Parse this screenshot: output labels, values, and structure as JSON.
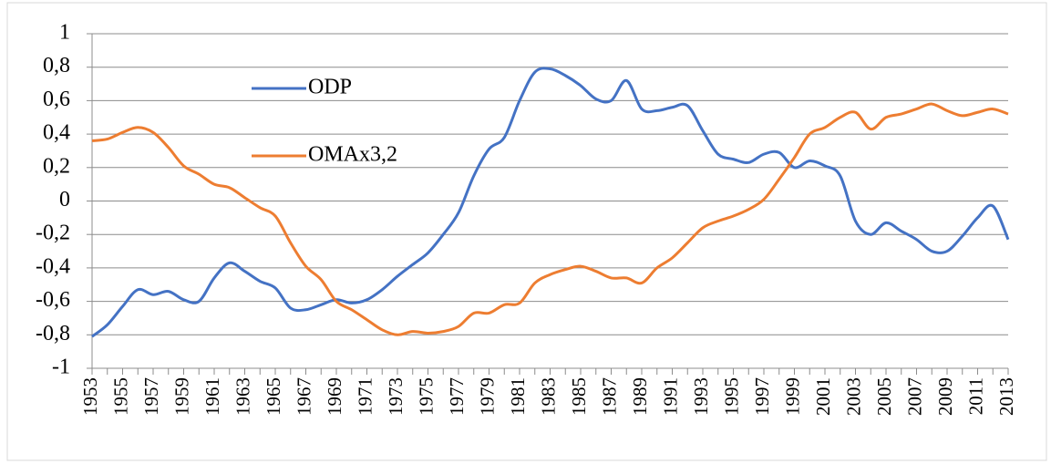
{
  "chart_data": {
    "type": "line",
    "categories": [
      "1953",
      null,
      "1955",
      null,
      "1957",
      null,
      "1959",
      null,
      "1961",
      null,
      "1963",
      null,
      "1965",
      null,
      "1967",
      null,
      "1969",
      null,
      "1971",
      null,
      "1973",
      null,
      "1975",
      null,
      "1977",
      null,
      "1979",
      null,
      "1981",
      null,
      "1983",
      null,
      "1985",
      null,
      "1987",
      null,
      "1989",
      null,
      "1991",
      null,
      "1993",
      null,
      "1995",
      null,
      "1997",
      null,
      "1999",
      null,
      "2001",
      null,
      "2003",
      null,
      "2005",
      null,
      "2007",
      null,
      "2009",
      null,
      "2011",
      null,
      "2013"
    ],
    "series": [
      {
        "name": "ODP",
        "color": "#4472c4",
        "values": [
          -0.81,
          -0.74,
          -0.63,
          -0.53,
          -0.56,
          -0.54,
          -0.59,
          -0.6,
          -0.46,
          -0.37,
          -0.42,
          -0.48,
          -0.52,
          -0.64,
          -0.65,
          -0.62,
          -0.59,
          -0.61,
          -0.59,
          -0.53,
          -0.45,
          -0.38,
          -0.31,
          -0.2,
          -0.07,
          0.15,
          0.31,
          0.38,
          0.6,
          0.77,
          0.79,
          0.75,
          0.69,
          0.61,
          0.6,
          0.72,
          0.55,
          0.54,
          0.56,
          0.57,
          0.42,
          0.28,
          0.25,
          0.23,
          0.28,
          0.29,
          0.2,
          0.24,
          0.21,
          0.15,
          -0.12,
          -0.2,
          -0.13,
          -0.18,
          -0.23,
          -0.3,
          -0.3,
          -0.21,
          -0.1,
          -0.03,
          -0.23
        ]
      },
      {
        "name": "OMAx3,2",
        "color": "#ed7d31",
        "values": [
          0.36,
          0.37,
          0.41,
          0.44,
          0.41,
          0.32,
          0.21,
          0.16,
          0.1,
          0.08,
          0.02,
          -0.04,
          -0.09,
          -0.25,
          -0.39,
          -0.47,
          -0.6,
          -0.65,
          -0.71,
          -0.77,
          -0.8,
          -0.78,
          -0.79,
          -0.78,
          -0.75,
          -0.67,
          -0.67,
          -0.62,
          -0.61,
          -0.49,
          -0.44,
          -0.41,
          -0.39,
          -0.42,
          -0.46,
          -0.46,
          -0.49,
          -0.4,
          -0.34,
          -0.25,
          -0.16,
          -0.12,
          -0.09,
          -0.05,
          0.01,
          0.13,
          0.26,
          0.4,
          0.44,
          0.5,
          0.53,
          0.43,
          0.5,
          0.52,
          0.55,
          0.58,
          0.54,
          0.51,
          0.53,
          0.55,
          0.52
        ]
      }
    ],
    "ylim": [
      -1,
      1
    ],
    "yticks": [
      -1,
      {
        "value": -0.8,
        "label": "-0,8"
      },
      {
        "value": -0.6,
        "label": "-0,6"
      },
      {
        "value": -0.4,
        "label": "-0,4"
      },
      {
        "value": -0.2,
        "label": "-0,2"
      },
      0,
      {
        "value": 0.2,
        "label": "0,2"
      },
      {
        "value": 0.4,
        "label": "0,4"
      },
      {
        "value": 0.6,
        "label": "0,6"
      },
      {
        "value": 0.8,
        "label": "0,8"
      },
      1
    ],
    "grid": true
  }
}
